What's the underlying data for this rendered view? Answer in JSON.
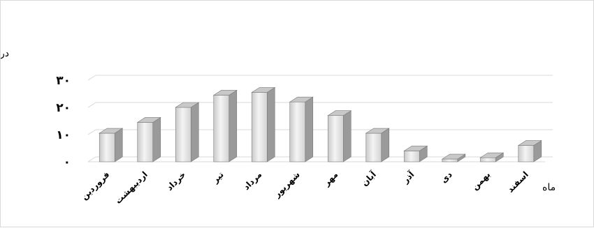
{
  "chart_data": {
    "type": "bar",
    "ylabel": "درجه سانتی‌گراد",
    "xlabel": "ماه",
    "categories": [
      "فروردین",
      "اردیبهشت",
      "خرداد",
      "تیر",
      "مرداد",
      "شهریور",
      "مهر",
      "آبان",
      "آذر",
      "دی",
      "بهمن",
      "اسفند"
    ],
    "values": [
      10.5,
      14.5,
      20,
      24.5,
      25.5,
      22,
      17,
      10.5,
      4,
      1,
      1.5,
      6
    ],
    "ylim": [
      0,
      30
    ],
    "yticks": [
      0,
      10,
      20,
      30
    ],
    "ytick_labels": [
      "۰",
      "۱۰",
      "۲۰",
      "۳۰"
    ],
    "grid": true,
    "bar_style": "3d-column",
    "colors": {
      "bar_front": "#e2e2e2",
      "bar_side": "#9a9a9a",
      "bar_top": "#c8c8c8",
      "grid": "#d9d9d9"
    }
  }
}
